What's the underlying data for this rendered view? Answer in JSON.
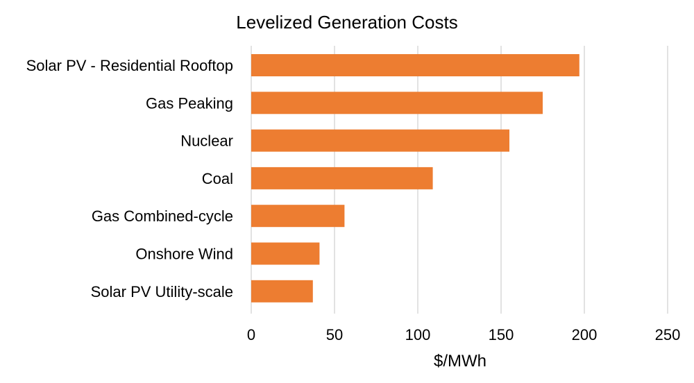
{
  "chart_data": {
    "type": "bar",
    "orientation": "horizontal",
    "title": "Levelized Generation Costs",
    "xlabel": "$/MWh",
    "ylabel": "",
    "xlim": [
      0,
      250
    ],
    "xticks": [
      0,
      50,
      100,
      150,
      200,
      250
    ],
    "grid": true,
    "bar_color": "#ED7D31",
    "categories": [
      "Solar PV - Residential Rooftop",
      "Gas Peaking",
      "Nuclear",
      "Coal",
      "Gas Combined-cycle",
      "Onshore Wind",
      "Solar PV Utility-scale"
    ],
    "values": [
      197,
      175,
      155,
      109,
      56,
      41,
      37
    ]
  }
}
